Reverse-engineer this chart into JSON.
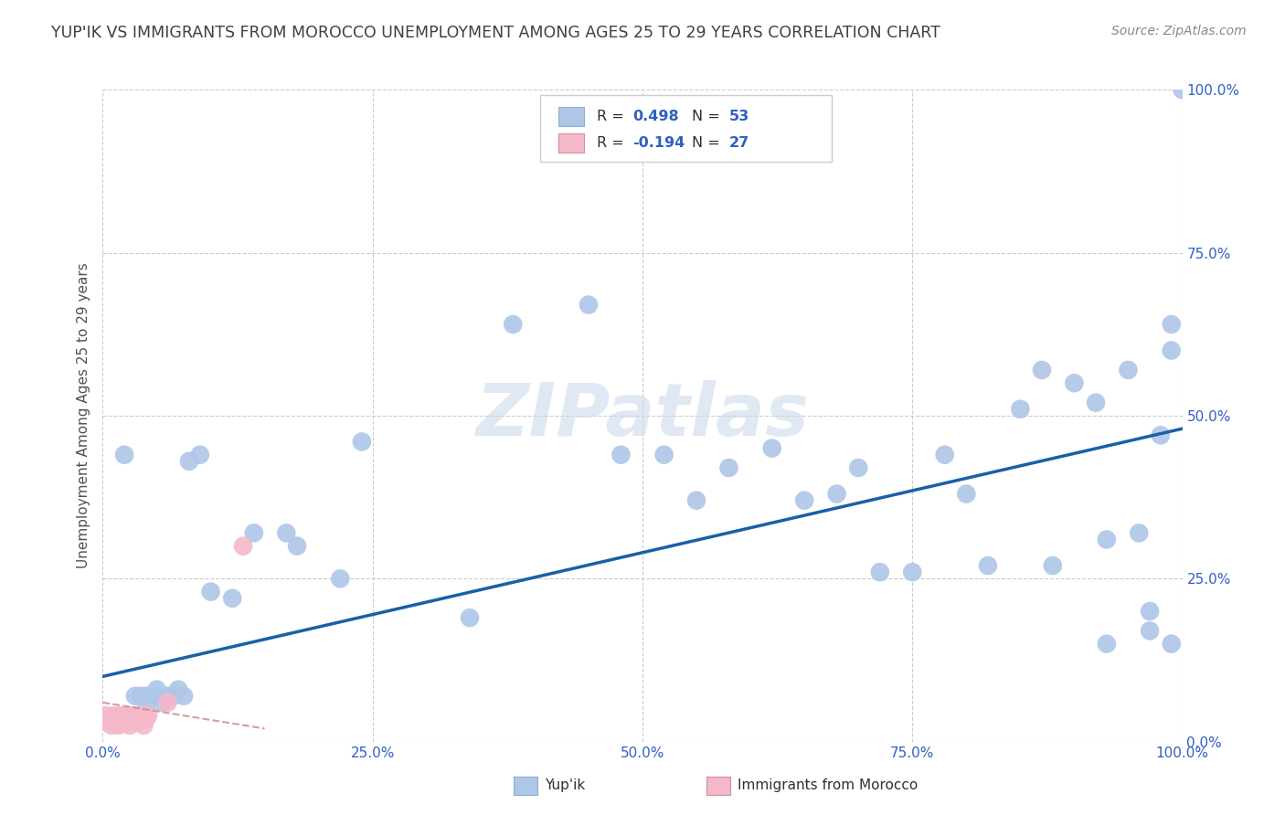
{
  "title": "YUP'IK VS IMMIGRANTS FROM MOROCCO UNEMPLOYMENT AMONG AGES 25 TO 29 YEARS CORRELATION CHART",
  "source": "Source: ZipAtlas.com",
  "ylabel": "Unemployment Among Ages 25 to 29 years",
  "xlim": [
    0.0,
    1.0
  ],
  "ylim": [
    0.0,
    1.0
  ],
  "xtick_labels": [
    "0.0%",
    "25.0%",
    "50.0%",
    "75.0%",
    "100.0%"
  ],
  "xtick_positions": [
    0.0,
    0.25,
    0.5,
    0.75,
    1.0
  ],
  "ytick_positions": [
    0.0,
    0.25,
    0.5,
    0.75,
    1.0
  ],
  "watermark": "ZIPatlas",
  "color_blue": "#aec6e8",
  "color_blue_line": "#1a5fa8",
  "color_pink": "#f5b8c8",
  "color_pink_line": "#d08898",
  "color_title": "#404040",
  "color_source": "#888888",
  "color_axis_blue": "#3060c0",
  "color_grid": "#cccccc",
  "yupik_x": [
    0.02,
    0.03,
    0.035,
    0.04,
    0.04,
    0.05,
    0.05,
    0.055,
    0.06,
    0.065,
    0.07,
    0.075,
    0.08,
    0.09,
    0.1,
    0.12,
    0.14,
    0.17,
    0.18,
    0.22,
    0.24,
    0.34,
    0.38,
    0.45,
    0.48,
    0.52,
    0.55,
    0.58,
    0.62,
    0.65,
    0.68,
    0.7,
    0.72,
    0.75,
    0.78,
    0.8,
    0.82,
    0.85,
    0.87,
    0.88,
    0.9,
    0.92,
    0.93,
    0.93,
    0.95,
    0.96,
    0.97,
    0.97,
    0.98,
    0.99,
    0.99,
    0.99,
    1.0
  ],
  "yupik_y": [
    0.44,
    0.07,
    0.07,
    0.05,
    0.07,
    0.07,
    0.08,
    0.06,
    0.07,
    0.07,
    0.08,
    0.07,
    0.43,
    0.44,
    0.23,
    0.22,
    0.32,
    0.32,
    0.3,
    0.25,
    0.46,
    0.19,
    0.64,
    0.67,
    0.44,
    0.44,
    0.37,
    0.42,
    0.45,
    0.37,
    0.38,
    0.42,
    0.26,
    0.26,
    0.44,
    0.38,
    0.27,
    0.51,
    0.57,
    0.27,
    0.55,
    0.52,
    0.15,
    0.31,
    0.57,
    0.32,
    0.17,
    0.2,
    0.47,
    0.15,
    0.6,
    0.64,
    1.0
  ],
  "morocco_x": [
    0.003,
    0.005,
    0.007,
    0.008,
    0.01,
    0.012,
    0.013,
    0.015,
    0.016,
    0.018,
    0.02,
    0.021,
    0.022,
    0.023,
    0.024,
    0.025,
    0.026,
    0.027,
    0.028,
    0.03,
    0.032,
    0.035,
    0.038,
    0.04,
    0.042,
    0.06,
    0.13
  ],
  "morocco_y": [
    0.04,
    0.03,
    0.035,
    0.025,
    0.04,
    0.03,
    0.035,
    0.025,
    0.04,
    0.03,
    0.04,
    0.035,
    0.03,
    0.04,
    0.035,
    0.025,
    0.04,
    0.03,
    0.035,
    0.04,
    0.03,
    0.04,
    0.025,
    0.035,
    0.04,
    0.06,
    0.3
  ],
  "blue_line_x": [
    0.0,
    1.0
  ],
  "blue_line_y": [
    0.1,
    0.48
  ],
  "pink_line_x": [
    0.0,
    0.15
  ],
  "pink_line_y": [
    0.06,
    0.02
  ]
}
